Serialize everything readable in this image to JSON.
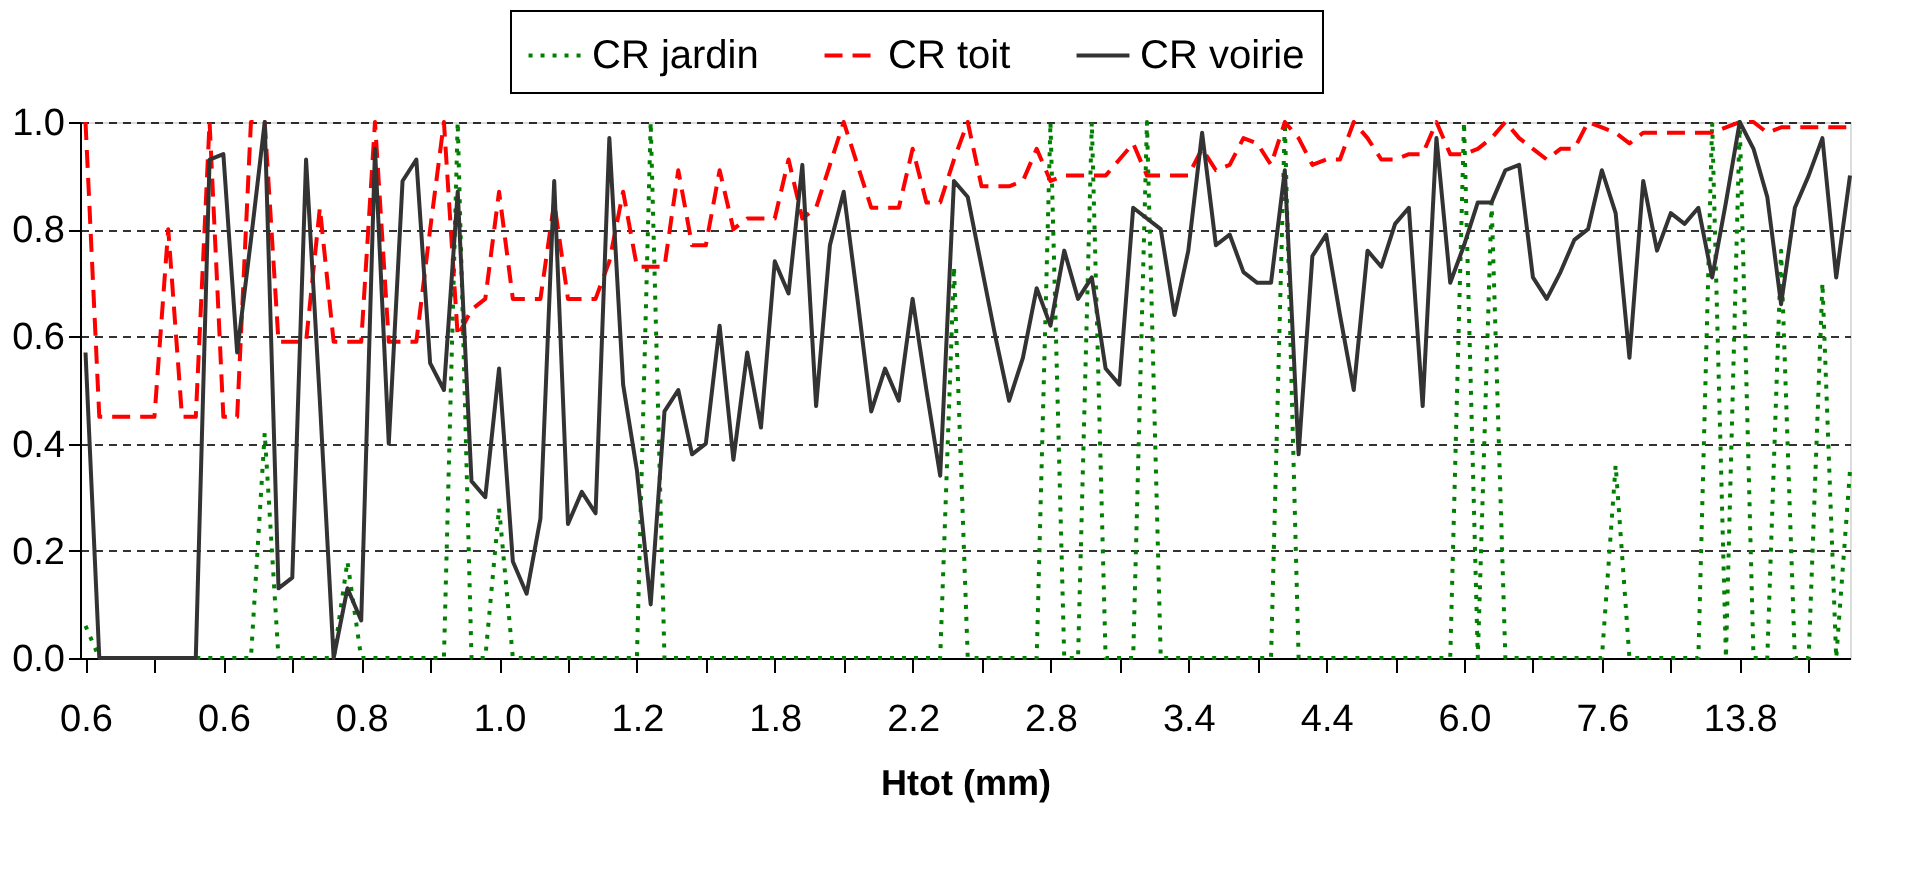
{
  "chart_data": {
    "type": "line",
    "xlabel": "Htot (mm)",
    "categories": [
      "0.6",
      null,
      null,
      null,
      null,
      null,
      null,
      null,
      null,
      null,
      "0.6",
      null,
      null,
      null,
      null,
      null,
      null,
      null,
      null,
      null,
      "0.8",
      null,
      null,
      null,
      null,
      null,
      null,
      null,
      null,
      null,
      "1.0",
      null,
      null,
      null,
      null,
      null,
      null,
      null,
      null,
      null,
      "1.2",
      null,
      null,
      null,
      null,
      null,
      null,
      null,
      null,
      null,
      "1.8",
      null,
      null,
      null,
      null,
      null,
      null,
      null,
      null,
      null,
      "2.2",
      null,
      null,
      null,
      null,
      null,
      null,
      null,
      null,
      null,
      "2.8",
      null,
      null,
      null,
      null,
      null,
      null,
      null,
      null,
      null,
      "3.4",
      null,
      null,
      null,
      null,
      null,
      null,
      null,
      null,
      null,
      "4.4",
      null,
      null,
      null,
      null,
      null,
      null,
      null,
      null,
      null,
      "6.0",
      null,
      null,
      null,
      null,
      null,
      null,
      null,
      null,
      null,
      "7.6",
      null,
      null,
      null,
      null,
      null,
      null,
      null,
      null,
      null,
      "13.8",
      null,
      null,
      null,
      null,
      null,
      null,
      null,
      null
    ],
    "series": [
      {
        "name": "CR jardin",
        "color": "#008000",
        "line_style": "dotted",
        "values": [
          0.06,
          0,
          0,
          0,
          0,
          0,
          0,
          0,
          0,
          0,
          0,
          0,
          0,
          0.42,
          0,
          0,
          0,
          0,
          0,
          0.18,
          0,
          0,
          0,
          0,
          0,
          0,
          0,
          1.0,
          0,
          0,
          0.28,
          0,
          0,
          0,
          0,
          0,
          0,
          0,
          0,
          0,
          0,
          1.0,
          0,
          0,
          0,
          0,
          0,
          0,
          0,
          0,
          0,
          0,
          0,
          0,
          0,
          0,
          0,
          0,
          0,
          0,
          0,
          0,
          0,
          0.73,
          0,
          0,
          0,
          0,
          0,
          0,
          1.0,
          0,
          0,
          1.0,
          0,
          0,
          0,
          1.0,
          0,
          0,
          0,
          0,
          0,
          0,
          0,
          0,
          0,
          1.0,
          0,
          0,
          0,
          0,
          0,
          0,
          0,
          0,
          0,
          0,
          0,
          0,
          1.0,
          0,
          0.85,
          0,
          0,
          0,
          0,
          0,
          0,
          0,
          0,
          0.36,
          0,
          0,
          0,
          0,
          0,
          0,
          1.0,
          0,
          1.0,
          0,
          0,
          0.76,
          0,
          0,
          0.7,
          0,
          0.35
        ]
      },
      {
        "name": "CR toit",
        "color": "#ff0000",
        "line_style": "dashed",
        "values": [
          1.0,
          0.45,
          0.45,
          0.45,
          0.45,
          0.45,
          0.8,
          0.45,
          0.45,
          1.0,
          0.45,
          0.45,
          1.0,
          1.0,
          0.59,
          0.59,
          0.59,
          0.84,
          0.59,
          0.59,
          0.59,
          1.0,
          0.59,
          0.59,
          0.59,
          0.8,
          1.0,
          0.6,
          0.65,
          0.67,
          0.87,
          0.67,
          0.67,
          0.67,
          0.85,
          0.67,
          0.67,
          0.67,
          0.74,
          0.87,
          0.73,
          0.73,
          0.73,
          0.91,
          0.77,
          0.77,
          0.91,
          0.8,
          0.82,
          0.82,
          0.82,
          0.93,
          0.82,
          0.84,
          0.92,
          1.0,
          0.92,
          0.84,
          0.84,
          0.84,
          0.95,
          0.85,
          0.85,
          0.93,
          1.0,
          0.88,
          0.88,
          0.88,
          0.89,
          0.95,
          0.89,
          0.9,
          0.9,
          0.9,
          0.9,
          0.93,
          0.96,
          0.9,
          0.9,
          0.9,
          0.9,
          0.95,
          0.91,
          0.92,
          0.97,
          0.96,
          0.92,
          1.0,
          0.97,
          0.92,
          0.93,
          0.93,
          1.0,
          0.97,
          0.93,
          0.93,
          0.94,
          0.94,
          1.0,
          0.94,
          0.94,
          0.95,
          0.97,
          1.0,
          0.97,
          0.95,
          0.93,
          0.95,
          0.95,
          1.0,
          0.99,
          0.98,
          0.96,
          0.98,
          0.98,
          0.98,
          0.98,
          0.98,
          0.98,
          0.99,
          1.0,
          1.0,
          0.98,
          0.99,
          0.99,
          0.99,
          0.99,
          0.99,
          0.99
        ]
      },
      {
        "name": "CR voirie",
        "color": "#333333",
        "line_style": "solid",
        "values": [
          0.57,
          0,
          0,
          0,
          0,
          0,
          0,
          0,
          0,
          0.93,
          0.94,
          0.57,
          0.78,
          1.0,
          0.13,
          0.15,
          0.93,
          0.48,
          0,
          0.13,
          0.07,
          0.95,
          0.4,
          0.89,
          0.93,
          0.55,
          0.5,
          0.87,
          0.33,
          0.3,
          0.54,
          0.18,
          0.12,
          0.26,
          0.89,
          0.25,
          0.31,
          0.27,
          0.97,
          0.51,
          0.35,
          0.1,
          0.46,
          0.5,
          0.38,
          0.4,
          0.62,
          0.37,
          0.57,
          0.43,
          0.74,
          0.68,
          0.92,
          0.47,
          0.77,
          0.87,
          0.67,
          0.46,
          0.54,
          0.48,
          0.67,
          0.5,
          0.34,
          0.89,
          0.86,
          0.73,
          0.6,
          0.48,
          0.56,
          0.69,
          0.62,
          0.76,
          0.67,
          0.71,
          0.54,
          0.51,
          0.84,
          0.82,
          0.8,
          0.64,
          0.76,
          0.98,
          0.77,
          0.79,
          0.72,
          0.7,
          0.7,
          0.91,
          0.38,
          0.75,
          0.79,
          0.64,
          0.5,
          0.76,
          0.73,
          0.81,
          0.84,
          0.47,
          0.97,
          0.7,
          0.77,
          0.85,
          0.85,
          0.91,
          0.92,
          0.71,
          0.67,
          0.72,
          0.78,
          0.8,
          0.91,
          0.83,
          0.56,
          0.89,
          0.76,
          0.83,
          0.81,
          0.84,
          0.71,
          0.85,
          1.0,
          0.95,
          0.86,
          0.66,
          0.84,
          0.9,
          0.97,
          0.71,
          0.9
        ]
      }
    ],
    "ylim": [
      0,
      1.0
    ],
    "yticks": [
      {
        "value": 0,
        "label": "0.0"
      },
      {
        "value": 0.2,
        "label": "0.2"
      },
      {
        "value": 0.4,
        "label": "0.4"
      },
      {
        "value": 0.6,
        "label": "0.6"
      },
      {
        "value": 0.8,
        "label": "0.8"
      },
      {
        "value": 1.0,
        "label": "1.0"
      }
    ],
    "grid": "y",
    "legend": "top",
    "marker": "none"
  }
}
